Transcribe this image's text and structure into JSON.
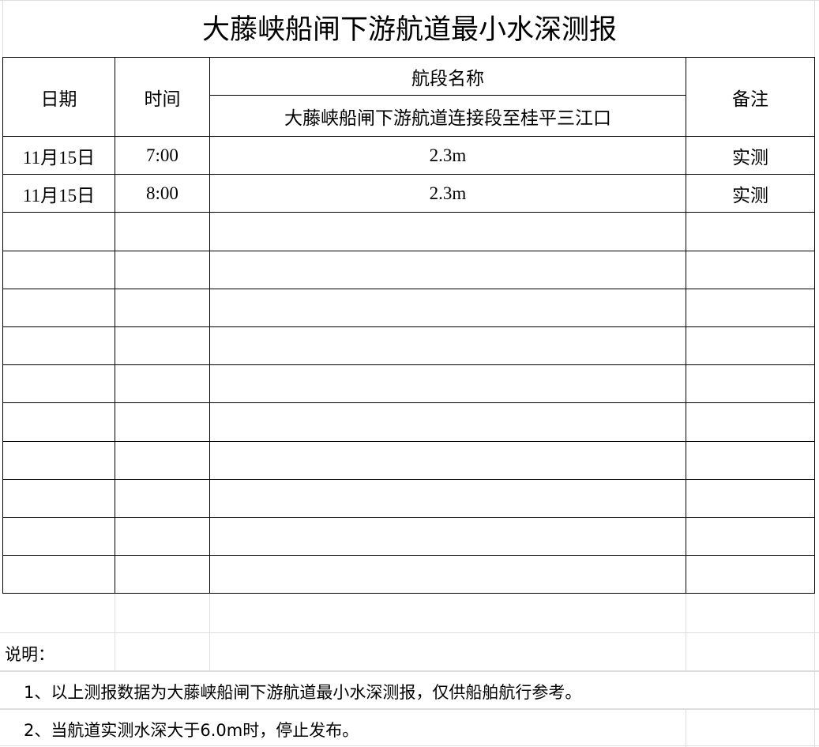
{
  "title": "大藤峡船闸下游航道最小水深测报",
  "headers": {
    "date": "日期",
    "time": "时间",
    "section_group": "航段名称",
    "section_name": "大藤峡船闸下游航道连接段至桂平三江口",
    "remark": "备注"
  },
  "rows": [
    {
      "date": "11月15日",
      "time": "7:00",
      "depth": "2.3m",
      "remark": "实测"
    },
    {
      "date": "11月15日",
      "time": "8:00",
      "depth": "2.3m",
      "remark": "实测"
    },
    {
      "date": "",
      "time": "",
      "depth": "",
      "remark": ""
    },
    {
      "date": "",
      "time": "",
      "depth": "",
      "remark": ""
    },
    {
      "date": "",
      "time": "",
      "depth": "",
      "remark": ""
    },
    {
      "date": "",
      "time": "",
      "depth": "",
      "remark": ""
    },
    {
      "date": "",
      "time": "",
      "depth": "",
      "remark": ""
    },
    {
      "date": "",
      "time": "",
      "depth": "",
      "remark": ""
    },
    {
      "date": "",
      "time": "",
      "depth": "",
      "remark": ""
    },
    {
      "date": "",
      "time": "",
      "depth": "",
      "remark": ""
    },
    {
      "date": "",
      "time": "",
      "depth": "",
      "remark": ""
    },
    {
      "date": "",
      "time": "",
      "depth": "",
      "remark": ""
    }
  ],
  "notes": {
    "heading": "说明：",
    "items": [
      "1、以上测报数据为大藤峡船闸下游航道最小水深测报，仅供船舶航行参考。",
      "2、当航道实测水深大于6.0m时，停止发布。"
    ]
  }
}
